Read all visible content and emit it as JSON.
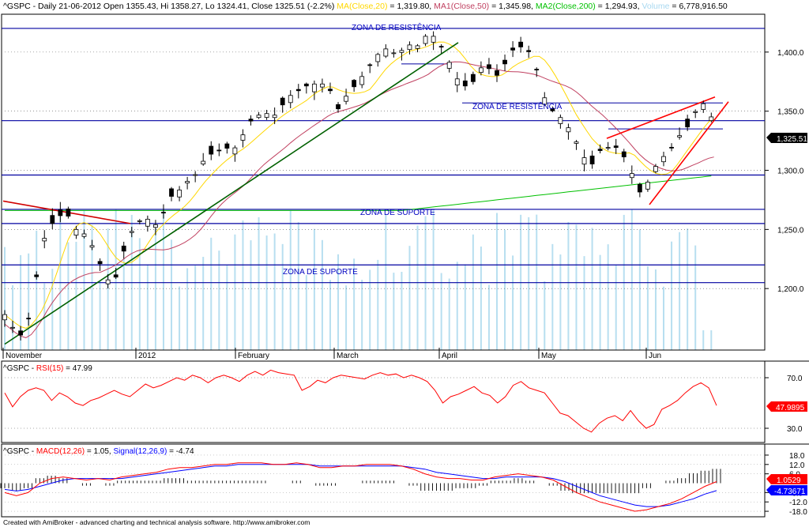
{
  "colors": {
    "up": "#ffffff",
    "down": "#000000",
    "ma20": "#ffd700",
    "ma50": "#c04060",
    "ma200": "#00c000",
    "volume": "#b8dff0",
    "zone": "#0000a0",
    "trend_up": "#006000",
    "wedge": "#ff0000",
    "rsi": "#ff0000",
    "macd": "#ff0000",
    "signal": "#0000ff",
    "histogram": "#000000",
    "text": "#000000",
    "zone_text": "#0000c0",
    "last_price_bg": "#000000",
    "last_rsi_bg": "#ff0000",
    "last_macd_bg": "#ff0000",
    "last_signal_bg": "#0000ff"
  },
  "header": {
    "symbol_line": "^GSPC - Daily 21-06-2012 Open 1355.43, Hi 1358.27, Lo 1324.41, Close 1325.51 (-2.2%)",
    "ma20_label": "MA(Close,20)",
    "ma20_value": " = 1,319.80,",
    "ma50_label": "MA1(Close,50)",
    "ma50_value": " = 1,345.98,",
    "ma200_label": "MA2(Close,200)",
    "ma200_value": " = 1,294.93,",
    "volume_label": "Volume",
    "volume_value": " = 6,778,916.50"
  },
  "zones": {
    "resistance_top": "ZONA DE RESISTÊNCIA",
    "resistance_mid": "ZONA DE RESISTÊNCIA",
    "support_mid": "ZONA DE SUPORTE",
    "support_low": "ZONA DE SUPORTE"
  },
  "last_price_label": "1,325.51",
  "rsi_header": {
    "prefix": "^GSPC - ",
    "label": "RSI(15)",
    "value": " = 47.99"
  },
  "rsi_last_label": "47.9895",
  "macd_header": {
    "prefix": "^GSPC - ",
    "macd_label": "MACD(12,26)",
    "macd_value": " = 1.05, ",
    "signal_label": "Signal(12,26,9)",
    "signal_value": " = -4.74"
  },
  "macd_last_label": "1.0529",
  "signal_last_label": "-4.73671",
  "footer": "Created with AmiBroker - advanced charting and technical analysis software. http://www.amibroker.com",
  "chart_data": [
    {
      "type": "candlestick",
      "symbol": "^GSPC",
      "period": "Daily",
      "x_labels": [
        "November",
        "2012",
        "February",
        "March",
        "April",
        "May",
        "Jun"
      ],
      "y_ticks": [
        1200,
        1250,
        1300,
        1350,
        1400
      ],
      "ylim": [
        1148,
        1432
      ],
      "last_close": 1325.51,
      "ohlc_close_path": [
        [
          0,
          1178
        ],
        [
          5,
          1160
        ],
        [
          8,
          1162
        ],
        [
          11,
          1200
        ],
        [
          14,
          1230
        ],
        [
          16,
          1255
        ],
        [
          18,
          1255
        ],
        [
          20,
          1260
        ],
        [
          23,
          1265
        ],
        [
          27,
          1250
        ],
        [
          31,
          1245
        ],
        [
          34,
          1232
        ],
        [
          38,
          1210
        ],
        [
          41,
          1202
        ],
        [
          44,
          1225
        ],
        [
          47,
          1245
        ],
        [
          50,
          1255
        ],
        [
          53,
          1262
        ],
        [
          56,
          1252
        ],
        [
          59,
          1258
        ],
        [
          62,
          1277
        ],
        [
          65,
          1280
        ],
        [
          68,
          1290
        ],
        [
          71,
          1292
        ],
        [
          74,
          1305
        ],
        [
          77,
          1313
        ],
        [
          80,
          1315
        ],
        [
          83,
          1320
        ],
        [
          86,
          1316
        ],
        [
          89,
          1325
        ],
        [
          92,
          1340
        ],
        [
          95,
          1345
        ],
        [
          98,
          1350
        ],
        [
          101,
          1344
        ],
        [
          104,
          1352
        ],
        [
          107,
          1362
        ],
        [
          110,
          1366
        ],
        [
          113,
          1370
        ],
        [
          116,
          1374
        ],
        [
          119,
          1371
        ],
        [
          122,
          1377
        ],
        [
          125,
          1348
        ],
        [
          128,
          1360
        ],
        [
          131,
          1368
        ],
        [
          134,
          1376
        ],
        [
          137,
          1386
        ],
        [
          140,
          1395
        ],
        [
          143,
          1404
        ],
        [
          146,
          1400
        ],
        [
          149,
          1398
        ],
        [
          152,
          1408
        ],
        [
          155,
          1402
        ],
        [
          158,
          1412
        ],
        [
          161,
          1416
        ],
        [
          164,
          1408
        ],
        [
          167,
          1397
        ],
        [
          170,
          1380
        ],
        [
          173,
          1372
        ],
        [
          176,
          1370
        ],
        [
          179,
          1385
        ],
        [
          182,
          1390
        ],
        [
          185,
          1378
        ],
        [
          188,
          1385
        ],
        [
          191,
          1400
        ],
        [
          194,
          1405
        ],
        [
          197,
          1403
        ],
        [
          200,
          1395
        ],
        [
          203,
          1366
        ],
        [
          206,
          1352
        ],
        [
          209,
          1347
        ],
        [
          212,
          1340
        ],
        [
          215,
          1328
        ],
        [
          218,
          1316
        ],
        [
          221,
          1300
        ],
        [
          224,
          1316
        ],
        [
          227,
          1318
        ],
        [
          230,
          1322
        ],
        [
          233,
          1314
        ],
        [
          236,
          1306
        ],
        [
          239,
          1280
        ],
        [
          242,
          1285
        ],
        [
          245,
          1300
        ],
        [
          248,
          1310
        ],
        [
          251,
          1315
        ],
        [
          254,
          1328
        ],
        [
          257,
          1332
        ],
        [
          260,
          1346
        ],
        [
          263,
          1357
        ],
        [
          266,
          1355
        ],
        [
          269,
          1325.51
        ]
      ],
      "zones": [
        {
          "label": "ZONA DE RESISTÊNCIA",
          "value": 1420
        },
        {
          "value": 1342
        },
        {
          "label": "ZONA DE RESISTÊNCIA",
          "value": 1357
        },
        {
          "value": 1296
        },
        {
          "label": "ZONA DE SUPORTE",
          "value": 1267
        },
        {
          "value": 1255
        },
        {
          "value": 1220
        },
        {
          "label": "ZONA DE SUPORTE",
          "value": 1205
        }
      ],
      "moving_averages": [
        {
          "name": "MA(Close,20)",
          "last": 1319.8
        },
        {
          "name": "MA1(Close,50)",
          "last": 1345.98
        },
        {
          "name": "MA2(Close,200)",
          "last": 1294.93
        }
      ],
      "volume_last": 6778916.5
    },
    {
      "type": "line",
      "name": "RSI(15)",
      "y_ticks": [
        30,
        70
      ],
      "ylim": [
        20,
        80
      ],
      "last": 47.99,
      "values": [
        58,
        47,
        55,
        60,
        62,
        60,
        52,
        58,
        55,
        50,
        48,
        52,
        54,
        57,
        60,
        57,
        55,
        60,
        65,
        62,
        64,
        67,
        70,
        68,
        72,
        70,
        66,
        70,
        72,
        70,
        67,
        72,
        75,
        72,
        76,
        74,
        73,
        72,
        60,
        63,
        68,
        66,
        70,
        72,
        71,
        70,
        69,
        72,
        74,
        72,
        73,
        70,
        72,
        70,
        67,
        60,
        50,
        55,
        57,
        60,
        63,
        58,
        56,
        50,
        55,
        64,
        67,
        62,
        60,
        58,
        50,
        42,
        40,
        35,
        30,
        27,
        34,
        38,
        40,
        36,
        44,
        36,
        30,
        33,
        45,
        48,
        52,
        58,
        63,
        66,
        62,
        48
      ]
    },
    {
      "type": "line",
      "name": "MACD(12,26)",
      "y_ticks": [
        -18,
        -12,
        -6,
        6,
        12,
        18
      ],
      "ylim": [
        -20,
        20
      ],
      "macd_last": 1.05,
      "signal_last": -4.74,
      "macd_values": [
        -6,
        -8,
        -6,
        0,
        3,
        4,
        3,
        2,
        3,
        2,
        4,
        5,
        6,
        7,
        9,
        10,
        10,
        11,
        12,
        12,
        13,
        13,
        13,
        12,
        12,
        13,
        12,
        10,
        10,
        11,
        11,
        12,
        12,
        12,
        11,
        9,
        6,
        4,
        3,
        3,
        2,
        2,
        4,
        5,
        6,
        5,
        4,
        2,
        -2,
        -6,
        -9,
        -12,
        -14,
        -16,
        -18,
        -17,
        -15,
        -13,
        -10,
        -6,
        -2,
        1
      ],
      "signal_values": [
        -4,
        -5,
        -4,
        -2,
        0,
        2,
        3,
        3,
        3,
        3,
        3,
        4,
        5,
        6,
        7,
        8,
        9,
        10,
        11,
        11,
        12,
        12,
        12,
        12,
        12,
        12,
        12,
        11,
        11,
        11,
        11,
        11,
        11,
        11,
        11,
        10,
        9,
        7,
        6,
        5,
        4,
        3,
        3,
        4,
        4,
        4,
        4,
        3,
        1,
        -2,
        -5,
        -8,
        -10,
        -12,
        -14,
        -15,
        -15,
        -14,
        -12,
        -10,
        -7,
        -4.74
      ]
    }
  ]
}
